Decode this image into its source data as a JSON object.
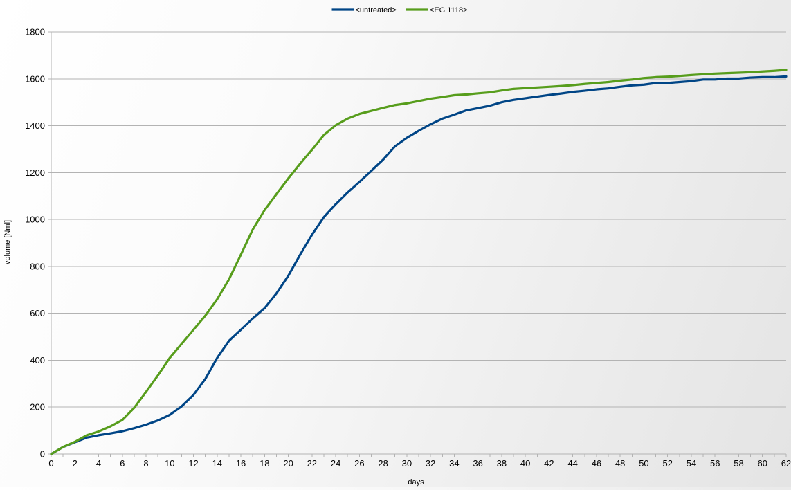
{
  "chart_data": {
    "type": "line",
    "title": "",
    "xlabel": "days",
    "ylabel": "volume [Nml]",
    "xlim": [
      0,
      62
    ],
    "ylim": [
      0,
      1800
    ],
    "x_ticks": [
      0,
      2,
      4,
      6,
      8,
      10,
      12,
      14,
      16,
      18,
      20,
      22,
      24,
      26,
      28,
      30,
      32,
      34,
      36,
      38,
      40,
      42,
      44,
      46,
      48,
      50,
      52,
      54,
      56,
      58,
      60,
      62
    ],
    "y_ticks": [
      0,
      200,
      400,
      600,
      800,
      1000,
      1200,
      1400,
      1600,
      1800
    ],
    "grid": "horizontal",
    "legend_position": "top-center",
    "series": [
      {
        "name": "<untreated>",
        "color": "#004586",
        "x": [
          0,
          1,
          2,
          3,
          4,
          5,
          6,
          7,
          8,
          9,
          10,
          11,
          12,
          13,
          14,
          15,
          16,
          17,
          18,
          19,
          20,
          21,
          22,
          23,
          24,
          25,
          26,
          27,
          28,
          29,
          30,
          31,
          32,
          33,
          34,
          35,
          36,
          37,
          38,
          39,
          40,
          41,
          42,
          43,
          44,
          45,
          46,
          47,
          48,
          49,
          50,
          51,
          52,
          53,
          54,
          55,
          56,
          57,
          58,
          59,
          60,
          61,
          62
        ],
        "values": [
          0,
          30,
          50,
          70,
          80,
          88,
          97,
          110,
          125,
          143,
          167,
          203,
          252,
          320,
          410,
          483,
          530,
          578,
          622,
          685,
          760,
          850,
          935,
          1010,
          1065,
          1115,
          1160,
          1207,
          1255,
          1312,
          1348,
          1378,
          1406,
          1430,
          1447,
          1465,
          1475,
          1485,
          1500,
          1510,
          1517,
          1524,
          1531,
          1537,
          1544,
          1549,
          1555,
          1559,
          1566,
          1572,
          1575,
          1582,
          1582,
          1586,
          1590,
          1597,
          1597,
          1601,
          1601,
          1605,
          1607,
          1607,
          1610
        ]
      },
      {
        "name": "<EG 1118>",
        "color": "#579d1c",
        "x": [
          0,
          1,
          2,
          3,
          4,
          5,
          6,
          7,
          8,
          9,
          10,
          11,
          12,
          13,
          14,
          15,
          16,
          17,
          18,
          19,
          20,
          21,
          22,
          23,
          24,
          25,
          26,
          27,
          28,
          29,
          30,
          31,
          32,
          33,
          34,
          35,
          36,
          37,
          38,
          39,
          40,
          41,
          42,
          43,
          44,
          45,
          46,
          47,
          48,
          49,
          50,
          51,
          52,
          53,
          54,
          55,
          56,
          57,
          58,
          59,
          60,
          61,
          62
        ],
        "values": [
          0,
          30,
          52,
          80,
          96,
          118,
          145,
          197,
          265,
          335,
          410,
          470,
          530,
          590,
          660,
          745,
          850,
          957,
          1040,
          1108,
          1175,
          1238,
          1297,
          1360,
          1402,
          1430,
          1450,
          1463,
          1476,
          1488,
          1495,
          1505,
          1515,
          1522,
          1530,
          1533,
          1538,
          1542,
          1550,
          1557,
          1560,
          1563,
          1566,
          1569,
          1573,
          1578,
          1582,
          1586,
          1592,
          1597,
          1603,
          1607,
          1609,
          1612,
          1616,
          1619,
          1622,
          1624,
          1626,
          1628,
          1631,
          1634,
          1638
        ]
      }
    ]
  }
}
